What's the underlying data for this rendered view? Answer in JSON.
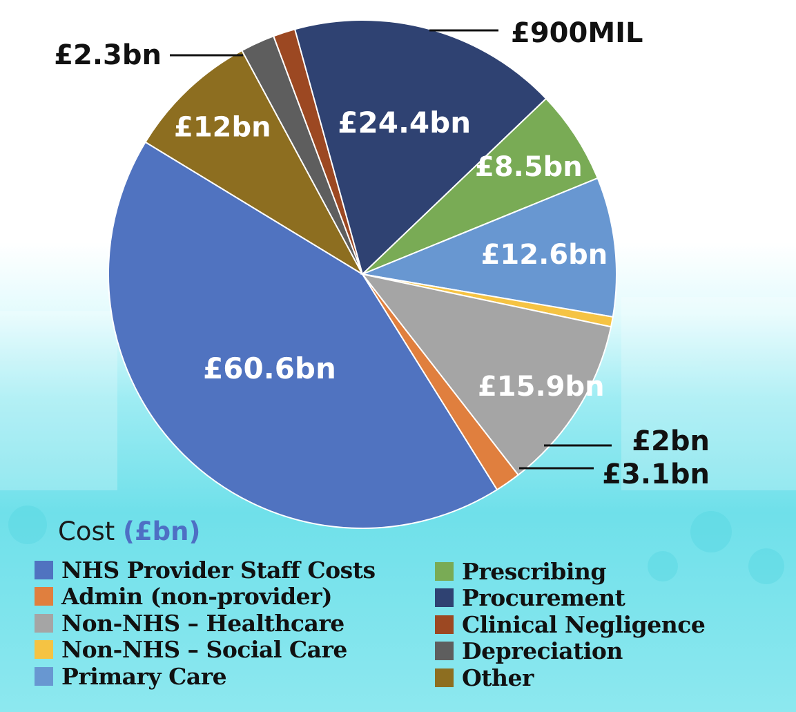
{
  "chart_data": {
    "type": "pie",
    "legend_title": "Cost",
    "legend_unit": "(£bn)",
    "legend_placement": "bottom",
    "slices": [
      {
        "name": "NHS Provider Staff Costs",
        "value": 60.6,
        "label": "£60.6bn",
        "color": "#5073c0"
      },
      {
        "name": "Other",
        "value": 12,
        "label": "£12bn",
        "color": "#8d6e20"
      },
      {
        "name": "Depreciation",
        "value": 3.1,
        "label": "£3.1bn",
        "color": "#5e5e5e"
      },
      {
        "name": "Clinical Negligence",
        "value": 2,
        "label": "£2bn",
        "color": "#9c4822"
      },
      {
        "name": "Procurement",
        "value": 24.4,
        "label": "£24.4bn",
        "color": "#2f4272"
      },
      {
        "name": "Prescribing",
        "value": 8.5,
        "label": "£8.5bn",
        "color": "#79ab55"
      },
      {
        "name": "Primary Care",
        "value": 12.6,
        "label": "£12.6bn",
        "color": "#6897d1"
      },
      {
        "name": "Non-NHS – Social Care",
        "value": 0.9,
        "label": "£900MIL",
        "color": "#f5c343"
      },
      {
        "name": "Non-NHS – Healthcare",
        "value": 15.9,
        "label": "£15.9bn",
        "color": "#a5a5a5"
      },
      {
        "name": "Admin (non-provider)",
        "value": 2.3,
        "label": "£2.3bn",
        "color": "#e07f3e"
      }
    ]
  },
  "legend_left": [
    {
      "label": "NHS Provider Staff Costs",
      "color": "#5073c0"
    },
    {
      "label": "Admin (non-provider)",
      "color": "#e07f3e"
    },
    {
      "label": "Non-NHS – Healthcare",
      "color": "#a5a5a5"
    },
    {
      "label": "Non-NHS – Social Care",
      "color": "#f5c343"
    },
    {
      "label": "Primary Care",
      "color": "#6897d1"
    }
  ],
  "legend_right": [
    {
      "label": "Prescribing",
      "color": "#79ab55"
    },
    {
      "label": "Procurement",
      "color": "#2f4272"
    },
    {
      "label": "Clinical Negligence",
      "color": "#9c4822"
    },
    {
      "label": "Depreciation",
      "color": "#5e5e5e"
    },
    {
      "label": "Other",
      "color": "#8d6e20"
    }
  ]
}
